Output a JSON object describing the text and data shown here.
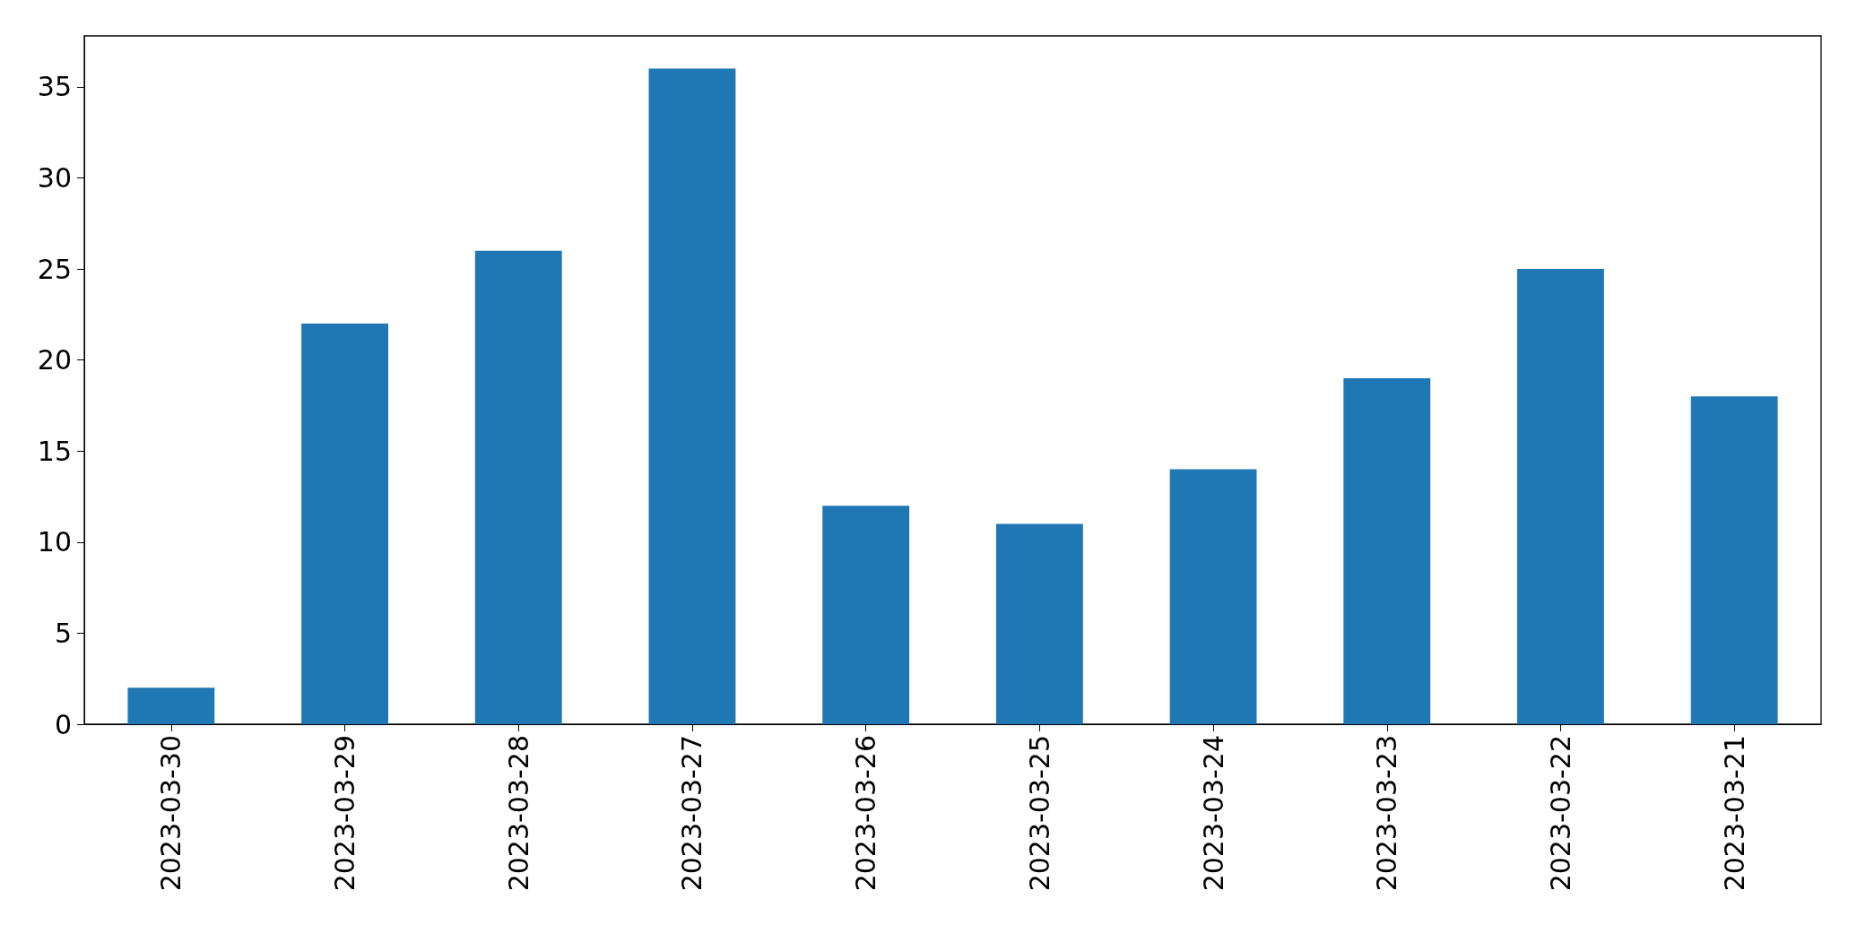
{
  "chart_data": {
    "type": "bar",
    "categories": [
      "2023-03-30",
      "2023-03-29",
      "2023-03-28",
      "2023-03-27",
      "2023-03-26",
      "2023-03-25",
      "2023-03-24",
      "2023-03-23",
      "2023-03-22",
      "2023-03-21"
    ],
    "values": [
      2,
      22,
      26,
      36,
      12,
      11,
      14,
      19,
      25,
      18
    ],
    "color": "#1f77b4",
    "ylim": [
      0,
      37.8
    ],
    "yticks": [
      0,
      5,
      10,
      15,
      20,
      25,
      30,
      35
    ]
  }
}
